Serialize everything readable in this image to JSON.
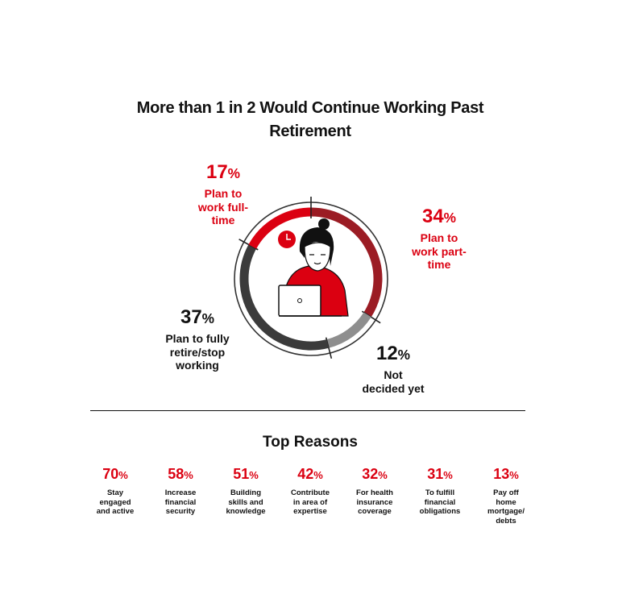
{
  "chart_data": {
    "type": "donut",
    "title": "More than 1 in 2 Would Continue Working Past Retirement",
    "categories": [
      "Plan to work part-time",
      "Not decided yet",
      "Plan to fully retire/stop working",
      "Plan to work full-time"
    ],
    "values": [
      34,
      12,
      37,
      17
    ],
    "value_labels": [
      "34%",
      "12%",
      "37%",
      "17%"
    ],
    "colors": [
      "#9b1c24",
      "#8e8e8e",
      "#3b3b3b",
      "#db0011"
    ],
    "label_colors": [
      "#db0011",
      "#111111",
      "#111111",
      "#db0011"
    ]
  },
  "reasons": {
    "title": "Top Reasons",
    "items": [
      {
        "value": "70%",
        "label": "Stay engaged and active"
      },
      {
        "value": "58%",
        "label": "Increase financial security"
      },
      {
        "value": "51%",
        "label": "Building skills and knowledge"
      },
      {
        "value": "42%",
        "label": "Contribute in area of expertise"
      },
      {
        "value": "32%",
        "label": "For health insurance coverage"
      },
      {
        "value": "31%",
        "label": "To fulfill financial obligations"
      },
      {
        "value": "13%",
        "label": "Pay off home mortgage/ debts"
      }
    ]
  }
}
